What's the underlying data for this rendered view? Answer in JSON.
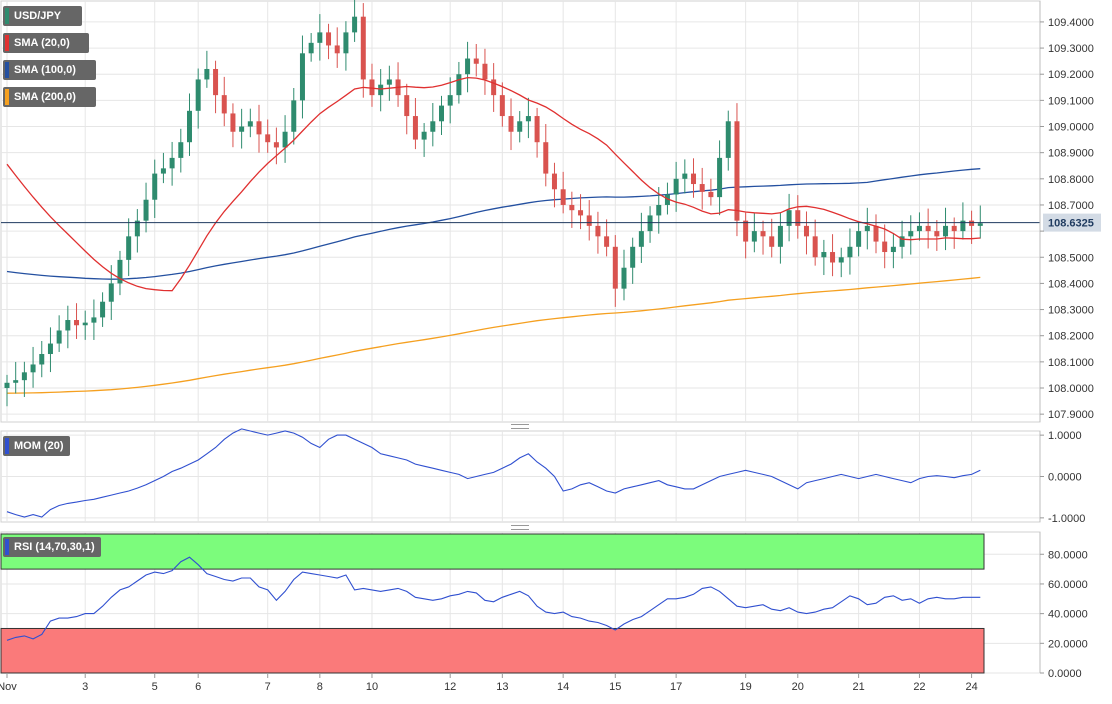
{
  "colors": {
    "bull": "#2e8b6e",
    "bear": "#d9534f",
    "sma20": "#e03030",
    "sma100": "#2450a0",
    "sma200": "#f5a020",
    "mom": "#3050d0",
    "rsi": "#3050d0",
    "overbought": "#7cfc7c",
    "oversold": "#fa7a7a",
    "grid": "#e6e6e6",
    "price_line": "#1f3a5f",
    "price_tag": "#d3dbe5"
  },
  "legend": {
    "symbol": "USD/JPY",
    "sma20": "SMA (20,0)",
    "sma100": "SMA (100,0)",
    "sma200": "SMA (200,0)"
  },
  "current_price": "108.6325",
  "chart_data": [
    {
      "type": "candlestick",
      "pane": "price",
      "ylim": [
        107.87,
        109.48
      ],
      "yticks": [
        "109.4000",
        "109.3000",
        "109.2000",
        "109.1000",
        "109.0000",
        "108.9000",
        "108.8000",
        "108.7000",
        "108.6000",
        "108.5000",
        "108.4000",
        "108.3000",
        "108.2000",
        "108.1000",
        "108.0000",
        "107.9000"
      ],
      "ytick_values": [
        109.4,
        109.3,
        109.2,
        109.1,
        109.0,
        108.9,
        108.8,
        108.7,
        108.6,
        108.5,
        108.4,
        108.3,
        108.2,
        108.1,
        108.0,
        107.9
      ],
      "x_labels": [
        "Nov",
        "3",
        "5",
        "6",
        "7",
        "8",
        "10",
        "12",
        "13",
        "14",
        "15",
        "17",
        "19",
        "20",
        "21",
        "22",
        "24"
      ],
      "x_label_bars": [
        0,
        9,
        17,
        22,
        30,
        36,
        42,
        51,
        57,
        64,
        70,
        77,
        85,
        91,
        98,
        105,
        111
      ],
      "num_bars": 113,
      "close_series": [
        108.02,
        108.03,
        108.06,
        108.09,
        108.13,
        108.17,
        108.22,
        108.26,
        108.24,
        108.25,
        108.27,
        108.33,
        108.4,
        108.49,
        108.58,
        108.64,
        108.72,
        108.82,
        108.84,
        108.88,
        108.94,
        109.06,
        109.18,
        109.22,
        109.12,
        109.05,
        108.98,
        109.0,
        109.02,
        108.97,
        108.94,
        108.92,
        108.98,
        109.1,
        109.28,
        109.32,
        109.36,
        109.31,
        109.28,
        109.36,
        109.42,
        109.18,
        109.12,
        109.16,
        109.18,
        109.12,
        109.04,
        108.95,
        108.98,
        109.02,
        109.08,
        109.12,
        109.2,
        109.26,
        109.24,
        109.18,
        109.12,
        109.04,
        108.98,
        109.02,
        109.04,
        108.94,
        108.82,
        108.76,
        108.7,
        108.68,
        108.66,
        108.62,
        108.58,
        108.54,
        108.38,
        108.46,
        108.54,
        108.6,
        108.66,
        108.7,
        108.74,
        108.8,
        108.82,
        108.78,
        108.75,
        108.73,
        108.88,
        109.02,
        108.64,
        108.56,
        108.6,
        108.58,
        108.54,
        108.62,
        108.68,
        108.62,
        108.58,
        108.5,
        108.52,
        108.48,
        108.5,
        108.54,
        108.6,
        108.62,
        108.56,
        108.52,
        108.54,
        108.58,
        108.6,
        108.62,
        108.6,
        108.58,
        108.62,
        108.6,
        108.64,
        108.62,
        108.63
      ],
      "candles": "shown",
      "overlays": [
        "SMA (20,0)",
        "SMA (100,0)",
        "SMA (200,0)"
      ]
    },
    {
      "type": "line",
      "pane": "momentum",
      "name": "MOM (20)",
      "ylim": [
        -1.1,
        1.1
      ],
      "yticks": [
        "1.0000",
        "0.0000",
        "-1.0000"
      ],
      "ytick_values": [
        1.0,
        0.0,
        -1.0
      ],
      "values": [
        -0.85,
        -0.92,
        -0.98,
        -0.92,
        -0.98,
        -0.8,
        -0.7,
        -0.65,
        -0.62,
        -0.58,
        -0.55,
        -0.5,
        -0.45,
        -0.4,
        -0.35,
        -0.28,
        -0.2,
        -0.1,
        0.0,
        0.12,
        0.2,
        0.3,
        0.4,
        0.55,
        0.7,
        0.9,
        1.05,
        1.15,
        1.1,
        1.05,
        1.0,
        1.05,
        1.1,
        1.05,
        0.95,
        0.8,
        0.7,
        0.9,
        1.0,
        1.0,
        0.9,
        0.8,
        0.7,
        0.55,
        0.5,
        0.45,
        0.4,
        0.3,
        0.25,
        0.2,
        0.15,
        0.1,
        0.05,
        -0.05,
        0.0,
        0.05,
        0.1,
        0.2,
        0.3,
        0.45,
        0.55,
        0.35,
        0.2,
        0.0,
        -0.35,
        -0.3,
        -0.2,
        -0.15,
        -0.25,
        -0.35,
        -0.4,
        -0.3,
        -0.25,
        -0.2,
        -0.15,
        -0.1,
        -0.2,
        -0.25,
        -0.3,
        -0.3,
        -0.2,
        -0.1,
        0.0,
        0.05,
        0.1,
        0.15,
        0.1,
        0.05,
        0.0,
        -0.1,
        -0.2,
        -0.3,
        -0.15,
        -0.1,
        -0.05,
        0.0,
        0.05,
        0.0,
        -0.05,
        0.0,
        0.05,
        0.0,
        -0.05,
        -0.1,
        -0.15,
        -0.05,
        0.0,
        0.02,
        0.0,
        -0.03,
        0.02,
        0.05,
        0.15
      ]
    },
    {
      "type": "line",
      "pane": "rsi",
      "name": "RSI (14,70,30,1)",
      "ylim": [
        0,
        95
      ],
      "yticks": [
        "80.0000",
        "60.0000",
        "40.0000",
        "20.0000",
        "0.0000"
      ],
      "ytick_values": [
        80,
        60,
        40,
        20,
        0
      ],
      "overbought": 70,
      "oversold": 30,
      "values": [
        22,
        24,
        25,
        23,
        26,
        35,
        37,
        37,
        38,
        40,
        40,
        45,
        51,
        56,
        58,
        62,
        66,
        68,
        67,
        69,
        75,
        78,
        73,
        67,
        65,
        63,
        62,
        64,
        64,
        58,
        56,
        49,
        55,
        63,
        68,
        67,
        66,
        65,
        64,
        66,
        56,
        57,
        56,
        55,
        56,
        57,
        55,
        51,
        50,
        49,
        50,
        52,
        53,
        55,
        54,
        49,
        48,
        51,
        53,
        55,
        52,
        45,
        41,
        40,
        41,
        38,
        37,
        35,
        34,
        32,
        29,
        33,
        36,
        38,
        42,
        46,
        50,
        50,
        51,
        53,
        57,
        58,
        55,
        50,
        45,
        44,
        45,
        46,
        43,
        42,
        44,
        41,
        40,
        41,
        43,
        44,
        48,
        52,
        50,
        46,
        47,
        51,
        52,
        49,
        50,
        47,
        50,
        51,
        50,
        50,
        51,
        51,
        51
      ]
    }
  ]
}
